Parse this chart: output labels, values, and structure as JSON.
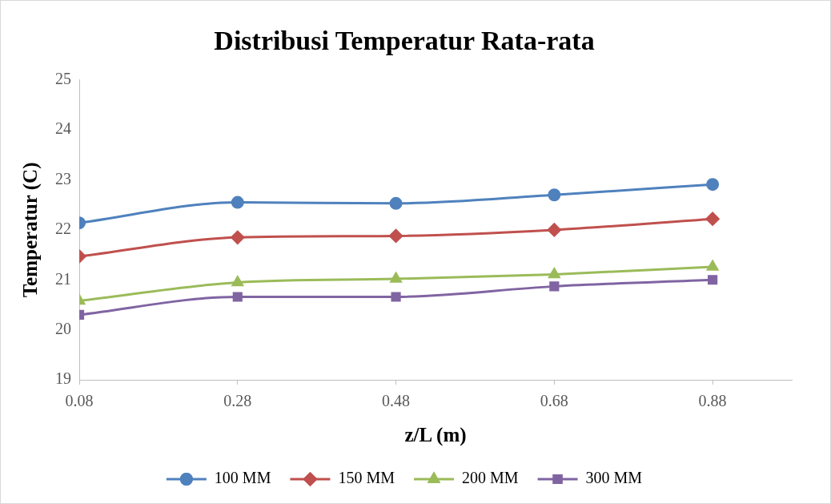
{
  "chart_data": {
    "type": "line",
    "title": "Distribusi Temperatur Rata-rata",
    "xlabel": "z/L (m)",
    "ylabel": "Temperatur (C)",
    "x": [
      0.08,
      0.28,
      0.48,
      0.68,
      0.88
    ],
    "xlim": [
      0.08,
      0.98
    ],
    "xticks": [
      0.08,
      0.28,
      0.48,
      0.68,
      0.88
    ],
    "ylim": [
      19,
      25
    ],
    "yticks": [
      19,
      20,
      21,
      22,
      23,
      24,
      25
    ],
    "grid": false,
    "legend": "bottom",
    "series": [
      {
        "name": "100 MM",
        "color": "#4f81bd",
        "marker": "circle",
        "values": [
          22.14,
          22.55,
          22.53,
          22.7,
          22.91
        ]
      },
      {
        "name": "150 MM",
        "color": "#c0504d",
        "marker": "diamond",
        "values": [
          21.47,
          21.85,
          21.88,
          22.0,
          22.22
        ]
      },
      {
        "name": "200 MM",
        "color": "#9bbb59",
        "marker": "triangle",
        "values": [
          20.58,
          20.95,
          21.02,
          21.11,
          21.26
        ]
      },
      {
        "name": "300 MM",
        "color": "#8064a2",
        "marker": "square",
        "values": [
          20.3,
          20.66,
          20.66,
          20.87,
          21.0
        ]
      }
    ]
  }
}
